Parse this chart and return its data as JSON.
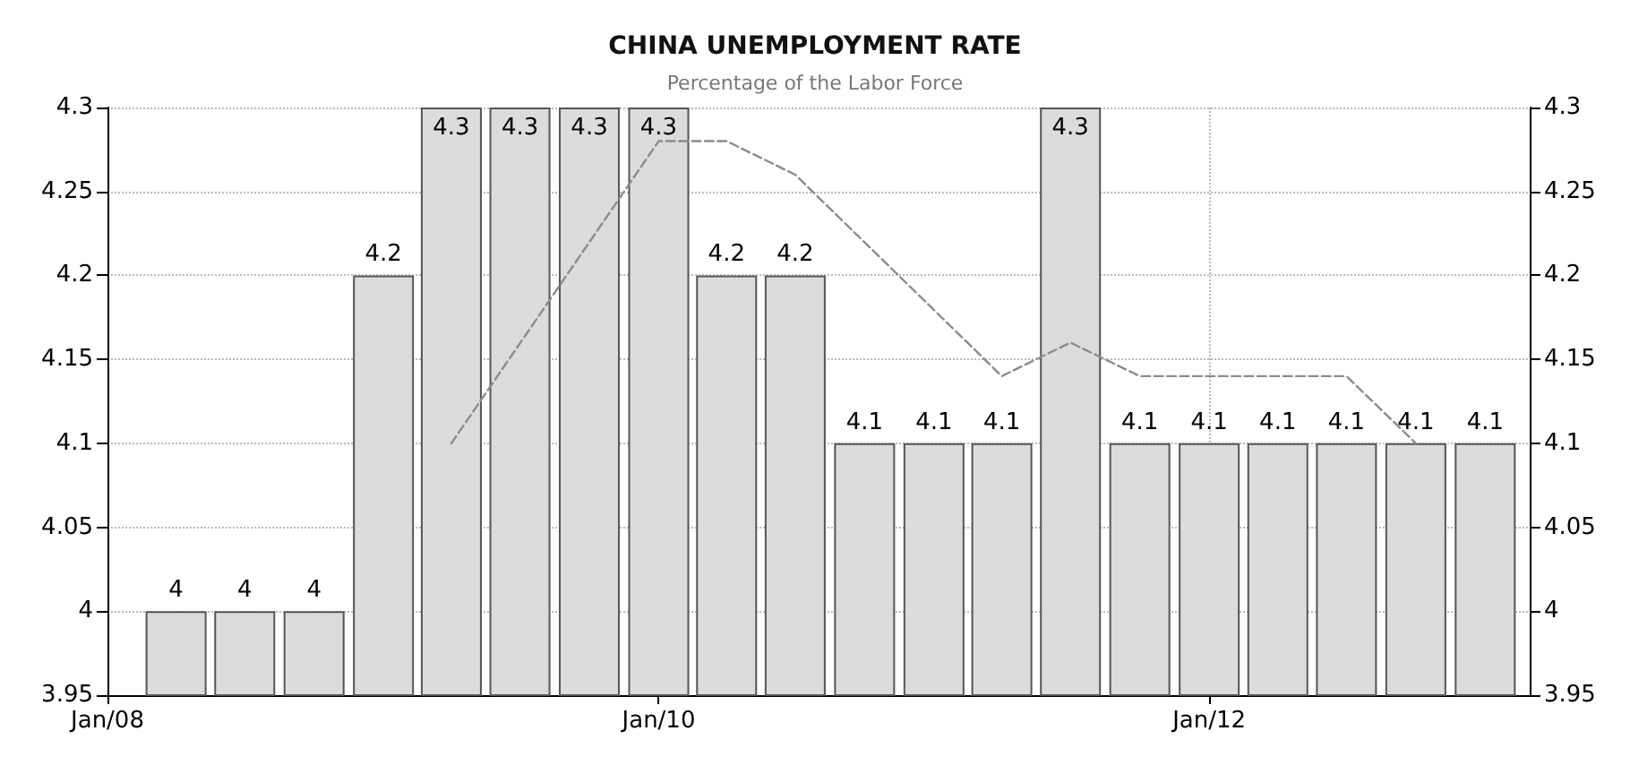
{
  "chart_data": {
    "type": "bar",
    "title": "CHINA UNEMPLOYMENT RATE",
    "subtitle": "Percentage of the Labor Force",
    "x": [
      "2008-04",
      "2008-07",
      "2008-10",
      "2009-01",
      "2009-04",
      "2009-07",
      "2009-10",
      "2010-01",
      "2010-04",
      "2010-07",
      "2010-10",
      "2011-01",
      "2011-04",
      "2011-07",
      "2011-10",
      "2012-01",
      "2012-04",
      "2012-07",
      "2012-10",
      "2013-01"
    ],
    "series": [
      {
        "color": "#dcdcdc",
        "values": [
          4,
          4,
          4,
          4.2,
          4.3,
          4.3,
          4.3,
          4.3,
          4.2,
          4.2,
          4.1,
          4.1,
          4.1,
          4.3,
          4.1,
          4.1,
          4.1,
          4.1,
          4.1,
          4.1
        ],
        "value_labels": [
          "4",
          "4",
          "4",
          "4.2",
          "4.3",
          "4.3",
          "4.3",
          "4.3",
          "4.2",
          "4.2",
          "4.1",
          "4.1",
          "4.1",
          "4.3",
          "4.1",
          "4.1",
          "4.1",
          "4.1",
          "4.1",
          "4.1"
        ]
      },
      {
        "type": "line",
        "color": "#8c8c8c",
        "line_style": "dashed",
        "marker": "none",
        "x": [
          "2009-04",
          "2010-01",
          "2010-04",
          "2010-07",
          "2011-04",
          "2011-07",
          "2011-10",
          "2012-07",
          "2012-10"
        ],
        "values": [
          4.1,
          4.28,
          4.28,
          4.26,
          4.14,
          4.16,
          4.14,
          4.14,
          4.1
        ]
      }
    ],
    "xlim": [
      "2008-01",
      "2013-03"
    ],
    "xticks": [
      {
        "value": "2008-01",
        "label": "Jan/08"
      },
      {
        "value": "2010-01",
        "label": "Jan/10"
      },
      {
        "value": "2012-01",
        "label": "Jan/12"
      }
    ],
    "ylim": [
      3.95,
      4.3
    ],
    "yticks": [
      3.95,
      4,
      4.05,
      4.1,
      4.15,
      4.2,
      4.25,
      4.3
    ],
    "y2lim": [
      3.95,
      4.3
    ],
    "y2ticks": [
      3.95,
      4,
      4.05,
      4.1,
      4.15,
      4.2,
      4.25,
      4.3
    ],
    "grid": true
  }
}
